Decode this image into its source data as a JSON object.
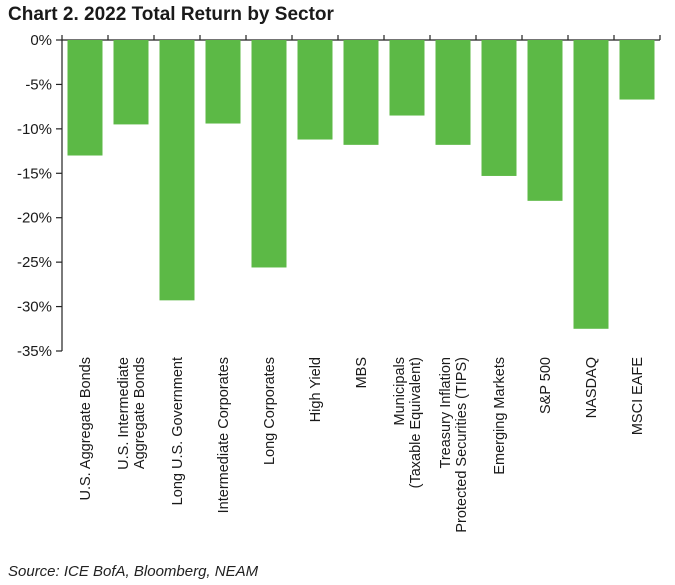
{
  "title": "Chart 2. 2022 Total Return by Sector",
  "source": "Source: ICE BofA, Bloomberg, NEAM",
  "chart_data": {
    "type": "bar",
    "title": "Chart 2. 2022 Total Return by Sector",
    "xlabel": "",
    "ylabel": "",
    "ylim": [
      -35,
      0
    ],
    "yticks": [
      0,
      -5,
      -10,
      -15,
      -20,
      -25,
      -30,
      -35
    ],
    "ytick_labels": [
      "0%",
      "-5%",
      "-10%",
      "-15%",
      "-20%",
      "-25%",
      "-30%",
      "-35%"
    ],
    "categories": [
      [
        "U.S. Aggregate Bonds"
      ],
      [
        "U.S. Intermediate",
        "Aggregate Bonds"
      ],
      [
        "Long U.S. Government"
      ],
      [
        "Intermediate Corporates"
      ],
      [
        "Long Corporates"
      ],
      [
        "High Yield"
      ],
      [
        "MBS"
      ],
      [
        "Municipals",
        "(Taxable Equivalent)"
      ],
      [
        "Treasury Inflation",
        "Protected Securities (TIPS)"
      ],
      [
        "Emerging Markets"
      ],
      [
        "S&P 500"
      ],
      [
        "NASDAQ"
      ],
      [
        "MSCI EAFE"
      ]
    ],
    "values": [
      -13.0,
      -9.5,
      -29.3,
      -9.4,
      -25.6,
      -11.2,
      -11.8,
      -8.5,
      -11.8,
      -15.3,
      -18.1,
      -32.5,
      -6.7
    ],
    "bar_color": "#5cb946",
    "grid": false
  }
}
